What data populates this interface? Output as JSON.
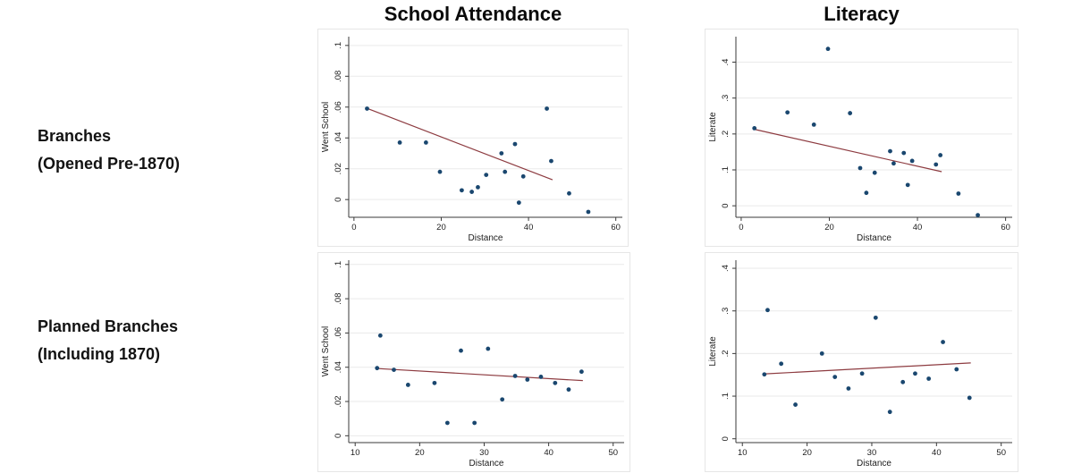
{
  "columns": [
    {
      "title": "School Attendance"
    },
    {
      "title": "Literacy"
    }
  ],
  "rows": [
    {
      "line1": "Branches",
      "line2": "(Opened Pre-1870)"
    },
    {
      "line1": "Planned Branches",
      "line2": "(Including 1870)"
    }
  ],
  "style": {
    "dot_color": "#1a476f",
    "fit_line_color": "#8d3b40",
    "grid_color": "#eaeaea",
    "axis_color": "#3a3a3a",
    "panel_border_color": "#e6e6e6",
    "background": "#ffffff"
  },
  "chart_data": [
    {
      "id": "branches-attendance",
      "type": "scatter",
      "row_label": "Branches (Opened Pre-1870)",
      "column_title": "School Attendance",
      "xlabel": "Distance",
      "ylabel": "Went School",
      "xlim": [
        -1.2,
        61.5
      ],
      "ylim": [
        -0.0115,
        0.1057
      ],
      "grid": "horizontal",
      "legend": "none",
      "xticks": [
        {
          "v": 0,
          "label": "0"
        },
        {
          "v": 20,
          "label": "20"
        },
        {
          "v": 40,
          "label": "40"
        },
        {
          "v": 60,
          "label": "60"
        }
      ],
      "yticks": [
        {
          "v": 0,
          "label": "0"
        },
        {
          "v": 0.02,
          "label": ".02"
        },
        {
          "v": 0.04,
          "label": ".04"
        },
        {
          "v": 0.06,
          "label": ".06"
        },
        {
          "v": 0.08,
          "label": ".08"
        },
        {
          "v": 0.1,
          "label": ".1"
        }
      ],
      "points": [
        [
          3,
          0.059
        ],
        [
          10.5,
          0.037
        ],
        [
          16.5,
          0.037
        ],
        [
          19.7,
          0.018
        ],
        [
          24.7,
          0.006
        ],
        [
          27,
          0.005
        ],
        [
          28.4,
          0.008
        ],
        [
          30.3,
          0.016
        ],
        [
          33.8,
          0.03
        ],
        [
          34.6,
          0.018
        ],
        [
          36.9,
          0.036
        ],
        [
          37.8,
          -0.002
        ],
        [
          38.8,
          0.015
        ],
        [
          44.2,
          0.059
        ],
        [
          45.2,
          0.025
        ],
        [
          49.3,
          0.004
        ],
        [
          53.7,
          -0.008
        ]
      ],
      "fit_line": {
        "x1": 3,
        "y1": 0.0592,
        "x2": 45.5,
        "y2": 0.0128
      }
    },
    {
      "id": "branches-literacy",
      "type": "scatter",
      "row_label": "Branches (Opened Pre-1870)",
      "column_title": "Literacy",
      "xlabel": "Distance",
      "ylabel": "Literate",
      "xlim": [
        -1.2,
        61.5
      ],
      "ylim": [
        -0.032,
        0.471
      ],
      "grid": "horizontal",
      "legend": "none",
      "xticks": [
        {
          "v": 0,
          "label": "0"
        },
        {
          "v": 20,
          "label": "20"
        },
        {
          "v": 40,
          "label": "40"
        },
        {
          "v": 60,
          "label": "60"
        }
      ],
      "yticks": [
        {
          "v": 0,
          "label": "0"
        },
        {
          "v": 0.1,
          "label": ".1"
        },
        {
          "v": 0.2,
          "label": ".2"
        },
        {
          "v": 0.3,
          "label": ".3"
        },
        {
          "v": 0.4,
          "label": ".4"
        }
      ],
      "points": [
        [
          3,
          0.216
        ],
        [
          10.5,
          0.26
        ],
        [
          16.5,
          0.226
        ],
        [
          19.7,
          0.437
        ],
        [
          24.7,
          0.258
        ],
        [
          27,
          0.105
        ],
        [
          28.4,
          0.036
        ],
        [
          30.3,
          0.092
        ],
        [
          33.8,
          0.152
        ],
        [
          34.6,
          0.118
        ],
        [
          36.9,
          0.147
        ],
        [
          37.8,
          0.058
        ],
        [
          38.8,
          0.125
        ],
        [
          44.2,
          0.115
        ],
        [
          45.2,
          0.141
        ],
        [
          49.3,
          0.034
        ],
        [
          53.7,
          -0.026
        ]
      ],
      "fit_line": {
        "x1": 3,
        "y1": 0.213,
        "x2": 45.5,
        "y2": 0.095
      }
    },
    {
      "id": "planned-attendance",
      "type": "scatter",
      "row_label": "Planned Branches (Including 1870)",
      "column_title": "School Attendance",
      "xlabel": "Distance",
      "ylabel": "Went School",
      "xlim": [
        9.0,
        51.7
      ],
      "ylim": [
        -0.004,
        0.1025
      ],
      "grid": "horizontal",
      "legend": "none",
      "xticks": [
        {
          "v": 10,
          "label": "10"
        },
        {
          "v": 20,
          "label": "20"
        },
        {
          "v": 30,
          "label": "30"
        },
        {
          "v": 40,
          "label": "40"
        },
        {
          "v": 50,
          "label": "50"
        }
      ],
      "yticks": [
        {
          "v": 0,
          "label": "0"
        },
        {
          "v": 0.02,
          "label": ".02"
        },
        {
          "v": 0.04,
          "label": ".04"
        },
        {
          "v": 0.06,
          "label": ".06"
        },
        {
          "v": 0.08,
          "label": ".08"
        },
        {
          "v": 0.1,
          "label": ".1"
        }
      ],
      "points": [
        [
          13.4,
          0.0395
        ],
        [
          13.9,
          0.0585
        ],
        [
          16,
          0.0385
        ],
        [
          18.2,
          0.0297
        ],
        [
          22.3,
          0.0308
        ],
        [
          24.3,
          0.0075
        ],
        [
          26.4,
          0.0497
        ],
        [
          28.5,
          0.0075
        ],
        [
          30.6,
          0.0508
        ],
        [
          32.8,
          0.0212
        ],
        [
          34.8,
          0.0349
        ],
        [
          36.7,
          0.0328
        ],
        [
          38.8,
          0.0344
        ],
        [
          41,
          0.0308
        ],
        [
          43.1,
          0.027
        ],
        [
          45.1,
          0.0374
        ]
      ],
      "fit_line": {
        "x1": 13.2,
        "y1": 0.0393,
        "x2": 45.3,
        "y2": 0.0322
      }
    },
    {
      "id": "planned-literacy",
      "type": "scatter",
      "row_label": "Planned Branches (Including 1870)",
      "column_title": "Literacy",
      "xlabel": "Distance",
      "ylabel": "Literate",
      "xlim": [
        9.0,
        51.7
      ],
      "ylim": [
        -0.009,
        0.419
      ],
      "grid": "horizontal",
      "legend": "none",
      "xticks": [
        {
          "v": 10,
          "label": "10"
        },
        {
          "v": 20,
          "label": "20"
        },
        {
          "v": 30,
          "label": "30"
        },
        {
          "v": 40,
          "label": "40"
        },
        {
          "v": 50,
          "label": "50"
        }
      ],
      "yticks": [
        {
          "v": 0,
          "label": "0"
        },
        {
          "v": 0.1,
          "label": ".1"
        },
        {
          "v": 0.2,
          "label": ".2"
        },
        {
          "v": 0.3,
          "label": ".3"
        },
        {
          "v": 0.4,
          "label": ".4"
        }
      ],
      "points": [
        [
          13.4,
          0.151
        ],
        [
          13.9,
          0.302
        ],
        [
          16,
          0.176
        ],
        [
          18.2,
          0.08
        ],
        [
          22.3,
          0.2
        ],
        [
          24.3,
          0.145
        ],
        [
          26.4,
          0.118
        ],
        [
          28.5,
          0.153
        ],
        [
          30.6,
          0.284
        ],
        [
          32.8,
          0.063
        ],
        [
          34.8,
          0.133
        ],
        [
          36.7,
          0.153
        ],
        [
          38.8,
          0.141
        ],
        [
          41,
          0.227
        ],
        [
          43.1,
          0.163
        ],
        [
          45.1,
          0.096
        ]
      ],
      "fit_line": {
        "x1": 13.2,
        "y1": 0.152,
        "x2": 45.3,
        "y2": 0.178
      }
    }
  ]
}
